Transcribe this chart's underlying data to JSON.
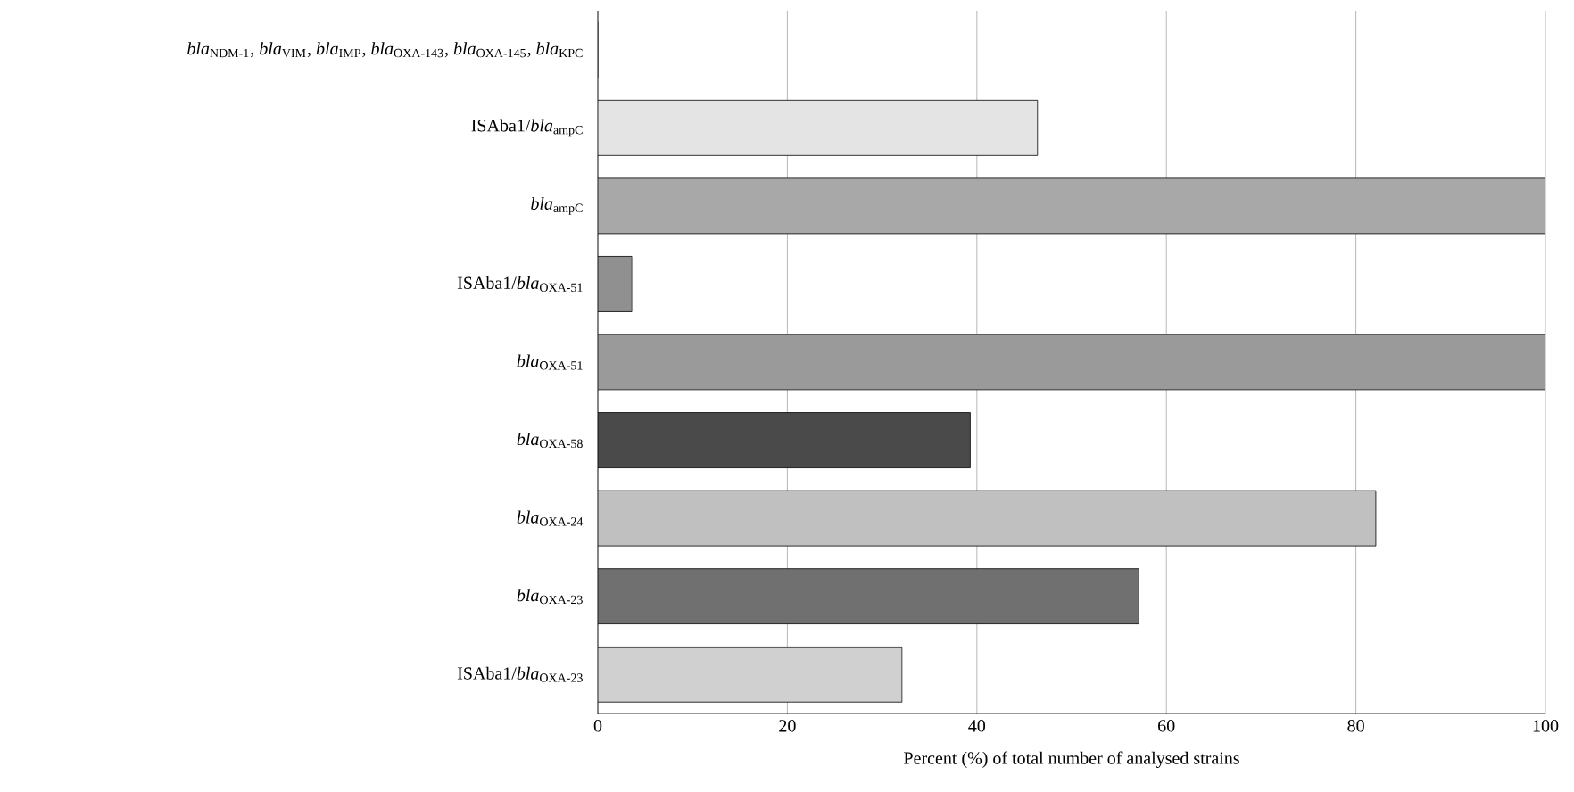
{
  "chart_data": {
    "type": "bar",
    "orientation": "horizontal",
    "xlabel": "Percent (%) of total number of analysed strains",
    "categories": [
      "*bla*$_{NDM-1}$, *bla*$_{VIM}$, *bla*$_{IMP}$, *bla*$_{OXA-143}$, *bla*$_{OXA-145}$, *bla*$_{KPC}$",
      "ISAba1/*bla*$_{ampC}$",
      "*bla*$_{ampC}$",
      "ISAba1/*bla*$_{OXA-51}$",
      "*bla*$_{OXA-51}$",
      "*bla*$_{OXA-58}$",
      "*bla*$_{OXA-24}$",
      "*bla*$_{OXA-23}$",
      "ISAba1/*bla*$_{OXA-23}$"
    ],
    "values": [
      0,
      46.4,
      100,
      3.6,
      100,
      39.3,
      82.1,
      57.1,
      32.1
    ],
    "colors": [
      "#ffffff",
      "#e4e4e4",
      "#a8a8a8",
      "#909090",
      "#9a9a9a",
      "#4a4a4a",
      "#c0c0c0",
      "#707070",
      "#d0d0d0"
    ],
    "xlim": [
      0,
      100
    ],
    "xticks": [
      0,
      20,
      40,
      60,
      80,
      100
    ],
    "grid": "x"
  }
}
